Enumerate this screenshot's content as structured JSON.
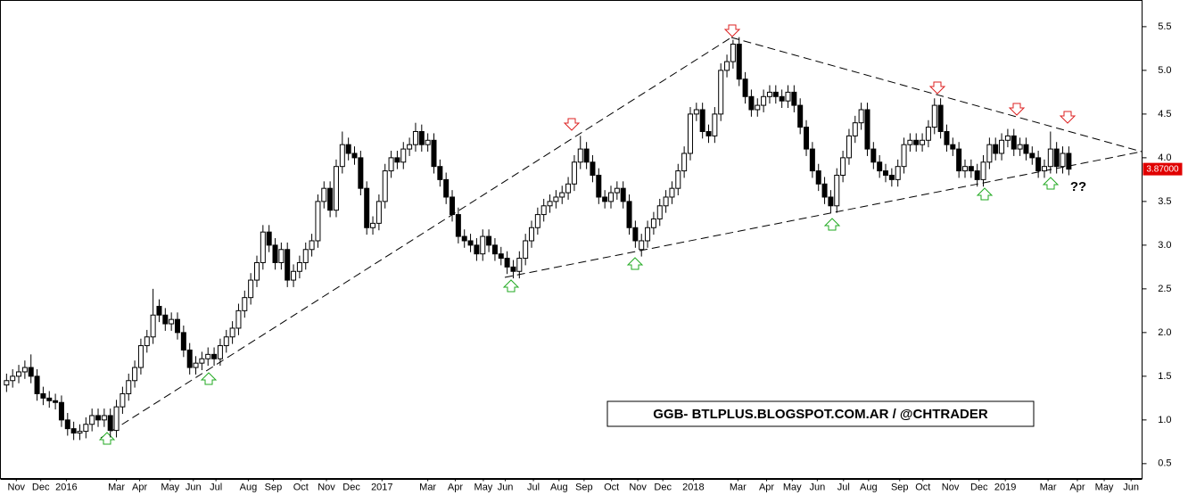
{
  "chart_data": {
    "type": "candlestick",
    "annotation": "GGB- BTLPLUS.BLOGSPOT.COM.AR / @CHTRADER",
    "question_mark": "??",
    "last_price_label": "3.87000",
    "xlim": [
      -1,
      186
    ],
    "xticks": [
      {
        "value": 1.6,
        "label": "Nov"
      },
      {
        "value": 5.6,
        "label": "Dec"
      },
      {
        "value": 9.8,
        "label": "2016"
      },
      {
        "value": 18,
        "label": "Mar"
      },
      {
        "value": 21.8,
        "label": "Apr"
      },
      {
        "value": 26.8,
        "label": "May"
      },
      {
        "value": 30.6,
        "label": "Jun"
      },
      {
        "value": 34.3,
        "label": "Jul"
      },
      {
        "value": 39.6,
        "label": "Aug"
      },
      {
        "value": 43.7,
        "label": "Sep"
      },
      {
        "value": 48.2,
        "label": "Oct"
      },
      {
        "value": 52.4,
        "label": "Nov"
      },
      {
        "value": 56.5,
        "label": "Dec"
      },
      {
        "value": 61.5,
        "label": "2017"
      },
      {
        "value": 69,
        "label": "Mar"
      },
      {
        "value": 73.5,
        "label": "Apr"
      },
      {
        "value": 78.1,
        "label": "May"
      },
      {
        "value": 81.7,
        "label": "Jun"
      },
      {
        "value": 86.3,
        "label": "Jul"
      },
      {
        "value": 90.5,
        "label": "Aug"
      },
      {
        "value": 94.6,
        "label": "Sep"
      },
      {
        "value": 99.1,
        "label": "Oct"
      },
      {
        "value": 103.4,
        "label": "Nov"
      },
      {
        "value": 107.5,
        "label": "Dec"
      },
      {
        "value": 112.5,
        "label": "2018"
      },
      {
        "value": 119.8,
        "label": "Mar"
      },
      {
        "value": 124.5,
        "label": "Apr"
      },
      {
        "value": 128.7,
        "label": "May"
      },
      {
        "value": 132.8,
        "label": "Jun"
      },
      {
        "value": 137.1,
        "label": "Jul"
      },
      {
        "value": 141.2,
        "label": "Aug"
      },
      {
        "value": 146.3,
        "label": "Sep"
      },
      {
        "value": 150.1,
        "label": "Oct"
      },
      {
        "value": 154.6,
        "label": "Nov"
      },
      {
        "value": 159.3,
        "label": "Dec"
      },
      {
        "value": 163.6,
        "label": "2019"
      },
      {
        "value": 170.6,
        "label": "Mar"
      },
      {
        "value": 175.4,
        "label": "Apr"
      },
      {
        "value": 179.8,
        "label": "May"
      },
      {
        "value": 184.2,
        "label": "Jun"
      }
    ],
    "ylim": [
      0.33,
      5.8
    ],
    "yticks": [
      0.5,
      {
        "value": 1.0,
        "label": "1.0"
      },
      1.5,
      {
        "value": 2.0,
        "label": "2.0"
      },
      2.5,
      {
        "value": 3.0,
        "label": "3.0"
      },
      3.5,
      {
        "value": 4.0,
        "label": "4.0"
      },
      4.5,
      {
        "value": 5.0,
        "label": "5.0"
      },
      5.5
    ],
    "series": [
      {
        "open": [
          1.4,
          1.45,
          1.5,
          1.55,
          1.6,
          1.5,
          1.3,
          1.25,
          1.22,
          1.2,
          1.0,
          0.9,
          0.85,
          0.87,
          0.95,
          1.05,
          1.0,
          1.05,
          0.88,
          1.15,
          1.3,
          1.45,
          1.6,
          1.85,
          1.95,
          2.3,
          2.2,
          2.1,
          2.15,
          2.0,
          1.8,
          1.6,
          1.65,
          1.7,
          1.75,
          1.7,
          1.85,
          1.95,
          2.05,
          2.25,
          2.4,
          2.6,
          2.8,
          3.15,
          3.0,
          2.8,
          2.95,
          2.6,
          2.7,
          2.8,
          2.95,
          3.05,
          3.5,
          3.65,
          3.4,
          3.9,
          4.15,
          4.05,
          4.0,
          3.65,
          3.2,
          3.25,
          3.5,
          3.85,
          4.0,
          3.95,
          4.1,
          4.15,
          4.3,
          4.15,
          4.2,
          3.9,
          3.75,
          3.55,
          3.35,
          3.1,
          3.05,
          3.0,
          2.9,
          3.1,
          3.0,
          2.9,
          2.85,
          2.75,
          2.7,
          2.85,
          3.05,
          3.2,
          3.35,
          3.45,
          3.5,
          3.55,
          3.6,
          3.7,
          3.95,
          4.1,
          3.95,
          3.8,
          3.55,
          3.5,
          3.6,
          3.65,
          3.5,
          3.2,
          2.95,
          3.05,
          3.2,
          3.3,
          3.45,
          3.55,
          3.65,
          3.85,
          4.05,
          4.5,
          4.55,
          4.3,
          4.25,
          4.5,
          5.0,
          5.1,
          5.3,
          4.9,
          4.7,
          4.55,
          4.6,
          4.7,
          4.75,
          4.7,
          4.65,
          4.75,
          4.6,
          4.35,
          4.1,
          3.85,
          3.7,
          3.55,
          3.45,
          3.8,
          4.0,
          4.25,
          4.4,
          4.55,
          4.1,
          3.95,
          3.85,
          3.8,
          3.75,
          3.9,
          4.15,
          4.2,
          4.15,
          4.2,
          4.35,
          4.6,
          4.3,
          4.15,
          4.1,
          3.85,
          3.9,
          3.85,
          3.75,
          3.95,
          4.15,
          4.05,
          4.2,
          4.25,
          4.1,
          4.15,
          4.05,
          4.0,
          3.85,
          3.9,
          4.1,
          3.9,
          4.05
        ],
        "high": [
          1.53,
          1.58,
          1.63,
          1.68,
          1.75,
          1.58,
          1.38,
          1.33,
          1.3,
          1.28,
          1.08,
          0.98,
          0.95,
          1.03,
          1.13,
          1.13,
          1.13,
          1.13,
          1.23,
          1.38,
          1.53,
          1.68,
          1.93,
          2.03,
          2.5,
          2.38,
          2.28,
          2.23,
          2.23,
          2.08,
          1.88,
          1.73,
          1.78,
          1.83,
          1.83,
          1.93,
          2.03,
          2.13,
          2.33,
          2.48,
          2.68,
          2.88,
          3.23,
          3.23,
          3.08,
          3.03,
          3.03,
          2.78,
          2.88,
          3.03,
          3.13,
          3.58,
          3.73,
          3.73,
          3.98,
          4.3,
          4.23,
          4.13,
          4.08,
          3.73,
          3.33,
          3.58,
          3.93,
          4.08,
          4.08,
          4.18,
          4.23,
          4.4,
          4.38,
          4.28,
          4.28,
          3.98,
          3.83,
          3.63,
          3.43,
          3.18,
          3.13,
          3.08,
          3.18,
          3.18,
          3.08,
          2.98,
          2.93,
          2.83,
          2.93,
          3.13,
          3.28,
          3.43,
          3.53,
          3.58,
          3.63,
          3.68,
          3.78,
          4.03,
          4.25,
          4.18,
          4.03,
          3.88,
          3.63,
          3.68,
          3.73,
          3.73,
          3.58,
          3.28,
          3.13,
          3.28,
          3.38,
          3.53,
          3.63,
          3.73,
          3.93,
          4.13,
          4.58,
          4.63,
          4.63,
          4.38,
          4.58,
          5.08,
          5.18,
          5.35,
          5.38,
          4.98,
          4.78,
          4.68,
          4.78,
          4.83,
          4.83,
          4.78,
          4.83,
          4.83,
          4.68,
          4.43,
          4.18,
          3.93,
          3.78,
          3.63,
          3.88,
          4.08,
          4.33,
          4.48,
          4.63,
          4.63,
          4.18,
          4.03,
          3.93,
          3.88,
          3.98,
          4.23,
          4.28,
          4.28,
          4.28,
          4.43,
          4.68,
          4.68,
          4.38,
          4.23,
          4.18,
          3.98,
          3.98,
          3.93,
          4.03,
          4.23,
          4.23,
          4.28,
          4.33,
          4.33,
          4.23,
          4.23,
          4.13,
          4.08,
          3.98,
          4.3,
          4.18,
          4.13,
          4.13
        ],
        "low": [
          1.32,
          1.37,
          1.42,
          1.47,
          1.42,
          1.22,
          1.17,
          1.14,
          1.12,
          0.92,
          0.82,
          0.77,
          0.77,
          0.79,
          0.87,
          0.92,
          0.92,
          0.8,
          0.8,
          1.07,
          1.22,
          1.37,
          1.52,
          1.77,
          1.87,
          2.12,
          2.02,
          2.02,
          1.92,
          1.72,
          1.52,
          1.52,
          1.57,
          1.62,
          1.62,
          1.62,
          1.77,
          1.87,
          1.97,
          2.17,
          2.32,
          2.52,
          2.72,
          2.92,
          2.72,
          2.72,
          2.52,
          2.52,
          2.62,
          2.72,
          2.87,
          2.97,
          3.42,
          3.32,
          3.32,
          3.82,
          3.97,
          3.92,
          3.57,
          3.12,
          3.12,
          3.17,
          3.42,
          3.77,
          3.87,
          3.87,
          4.02,
          4.07,
          4.07,
          4.07,
          3.82,
          3.67,
          3.47,
          3.27,
          3.02,
          2.97,
          2.92,
          2.82,
          2.82,
          2.92,
          2.82,
          2.77,
          2.67,
          2.62,
          2.62,
          2.77,
          2.97,
          3.12,
          3.27,
          3.37,
          3.42,
          3.47,
          3.52,
          3.62,
          3.87,
          3.87,
          3.72,
          3.47,
          3.42,
          3.42,
          3.52,
          3.42,
          3.12,
          2.97,
          2.87,
          2.97,
          3.12,
          3.22,
          3.37,
          3.47,
          3.57,
          3.77,
          3.97,
          4.42,
          4.22,
          4.17,
          4.17,
          4.42,
          4.92,
          5.02,
          4.82,
          4.62,
          4.47,
          4.47,
          4.52,
          4.62,
          4.62,
          4.57,
          4.57,
          4.52,
          4.27,
          4.02,
          3.77,
          3.62,
          3.47,
          3.37,
          3.37,
          3.72,
          3.92,
          4.17,
          4.32,
          4.02,
          3.87,
          3.77,
          3.72,
          3.67,
          3.67,
          3.82,
          4.07,
          4.07,
          4.07,
          4.12,
          4.27,
          4.22,
          4.07,
          4.02,
          3.77,
          3.77,
          3.77,
          3.67,
          3.67,
          3.87,
          3.97,
          3.97,
          4.12,
          4.02,
          4.02,
          3.97,
          3.92,
          3.77,
          3.77,
          3.82,
          3.82,
          3.82,
          3.8
        ],
        "close": [
          1.45,
          1.5,
          1.55,
          1.6,
          1.5,
          1.3,
          1.25,
          1.22,
          1.2,
          1.0,
          0.9,
          0.85,
          0.87,
          0.95,
          1.05,
          1.0,
          1.05,
          0.88,
          1.15,
          1.3,
          1.45,
          1.6,
          1.85,
          1.95,
          2.2,
          2.2,
          2.1,
          2.15,
          2.0,
          1.8,
          1.6,
          1.65,
          1.7,
          1.75,
          1.7,
          1.85,
          1.95,
          2.05,
          2.25,
          2.4,
          2.6,
          2.8,
          3.15,
          3.0,
          2.8,
          2.95,
          2.6,
          2.7,
          2.8,
          2.95,
          3.05,
          3.5,
          3.65,
          3.4,
          3.9,
          4.15,
          4.05,
          4.0,
          3.65,
          3.2,
          3.25,
          3.5,
          3.85,
          4.0,
          3.95,
          4.1,
          4.15,
          4.3,
          4.15,
          4.2,
          3.9,
          3.75,
          3.55,
          3.35,
          3.1,
          3.05,
          3.0,
          2.9,
          3.1,
          3.0,
          2.9,
          2.85,
          2.75,
          2.7,
          2.85,
          3.05,
          3.2,
          3.35,
          3.45,
          3.5,
          3.55,
          3.6,
          3.7,
          3.95,
          4.1,
          3.95,
          3.8,
          3.55,
          3.5,
          3.6,
          3.65,
          3.5,
          3.2,
          3.05,
          3.05,
          3.2,
          3.3,
          3.45,
          3.55,
          3.65,
          3.85,
          4.05,
          4.5,
          4.55,
          4.3,
          4.25,
          4.5,
          5.0,
          5.1,
          5.3,
          4.9,
          4.7,
          4.55,
          4.6,
          4.7,
          4.75,
          4.7,
          4.65,
          4.75,
          4.6,
          4.35,
          4.1,
          3.85,
          3.7,
          3.55,
          3.45,
          3.8,
          4.0,
          4.25,
          4.4,
          4.55,
          4.1,
          3.95,
          3.85,
          3.8,
          3.75,
          3.9,
          4.15,
          4.2,
          4.15,
          4.2,
          4.35,
          4.6,
          4.3,
          4.15,
          4.1,
          3.85,
          3.9,
          3.85,
          3.75,
          3.95,
          4.15,
          4.05,
          4.2,
          4.25,
          4.1,
          4.15,
          4.05,
          4.0,
          3.85,
          3.9,
          4.1,
          3.9,
          4.05,
          3.87
        ]
      }
    ]
  }
}
